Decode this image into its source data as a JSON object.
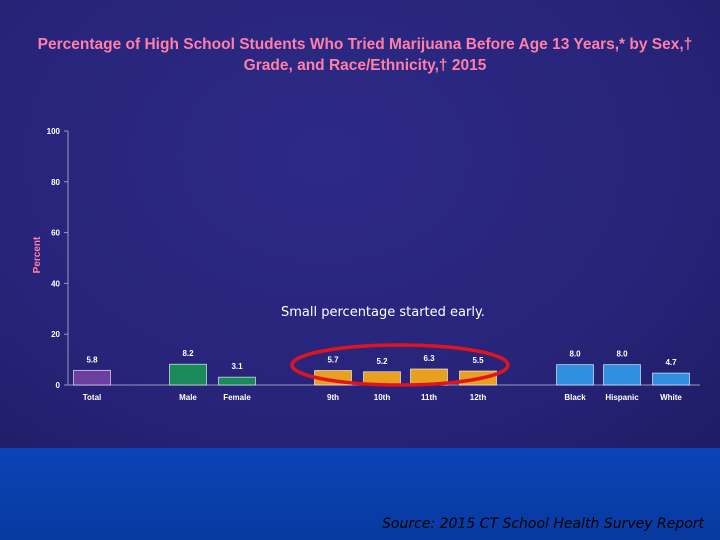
{
  "chart_data": {
    "type": "bar",
    "title": "Percentage of High School Students Who Tried Marijuana Before Age 13 Years,* by Sex,† Grade, and Race/Ethnicity,† 2015",
    "ylabel": "Percent",
    "xlabel": "",
    "ylim": [
      0,
      100
    ],
    "yticks": [
      0,
      20,
      40,
      60,
      80,
      100
    ],
    "grid": false,
    "categories": [
      "Total",
      "Male",
      "Female",
      "9th",
      "10th",
      "11th",
      "12th",
      "Black",
      "Hispanic",
      "White"
    ],
    "values": [
      5.8,
      8.2,
      3.1,
      5.7,
      5.2,
      6.3,
      5.5,
      8.0,
      8.0,
      4.7
    ],
    "value_labels": [
      "5.8",
      "8.2",
      "3.1",
      "5.7",
      "5.2",
      "6.3",
      "5.5",
      "8.0",
      "8.0",
      "4.7"
    ],
    "bar_colors": [
      "#6b3fa0",
      "#1a8a5a",
      "#1a8a5a",
      "#e8a020",
      "#e8a020",
      "#e8a020",
      "#e8a020",
      "#2f8fe0",
      "#2f8fe0",
      "#2f8fe0"
    ],
    "axis_color": "#9a9ab8",
    "label_color": "#ffffff"
  },
  "annotation": {
    "text": "Small percentage started early.",
    "highlight_color": "#e0141e"
  },
  "source": "Source: 2015 CT School Health Survey Report",
  "colors": {
    "title": "#ff7fa8",
    "panel": "#2a2680",
    "band": "#0a3a9c"
  }
}
